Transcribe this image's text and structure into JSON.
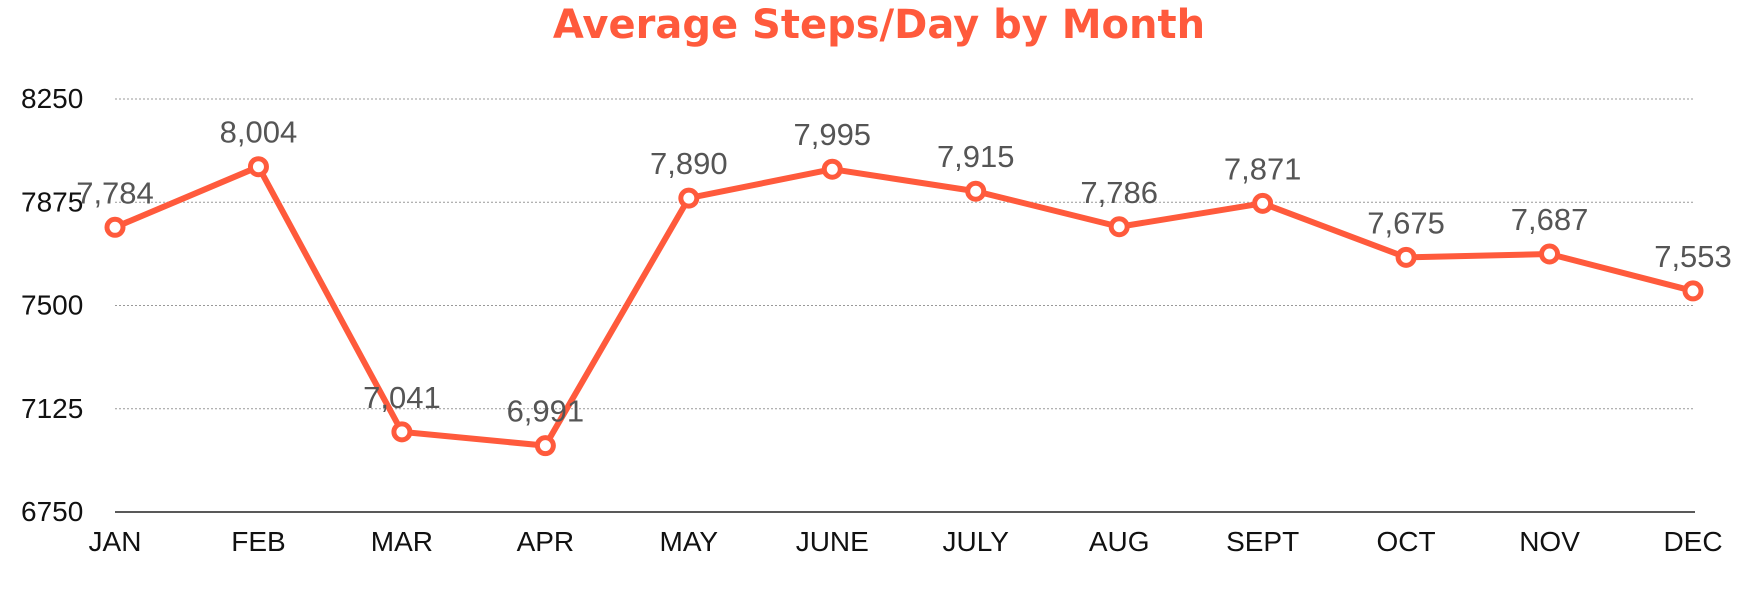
{
  "chart_data": {
    "type": "line",
    "title": "Average Steps/Day by Month",
    "xlabel": "",
    "ylabel": "",
    "categories": [
      "JAN",
      "FEB",
      "MAR",
      "APR",
      "MAY",
      "JUNE",
      "JULY",
      "AUG",
      "SEPT",
      "OCT",
      "NOV",
      "DEC"
    ],
    "series": [
      {
        "values": [
          7784,
          8004,
          7041,
          6991,
          7890,
          7995,
          7915,
          7786,
          7871,
          7675,
          7687,
          7553
        ],
        "labels": [
          "7,784",
          "8,004",
          "7,041",
          "6,991",
          "7,890",
          "7,995",
          "7,915",
          "7,786",
          "7,871",
          "7,675",
          "7,687",
          "7,553"
        ],
        "color": "#ff5a3c"
      }
    ],
    "ylim": [
      6750,
      8250
    ],
    "yticks": [
      "6750",
      "7125",
      "7500",
      "7875",
      "8250"
    ],
    "grid": true,
    "legend": "none",
    "colors": {
      "line": "#ff5a3c",
      "title": "#ff5a3c",
      "labels": "#555555",
      "grid": "#999999"
    }
  }
}
